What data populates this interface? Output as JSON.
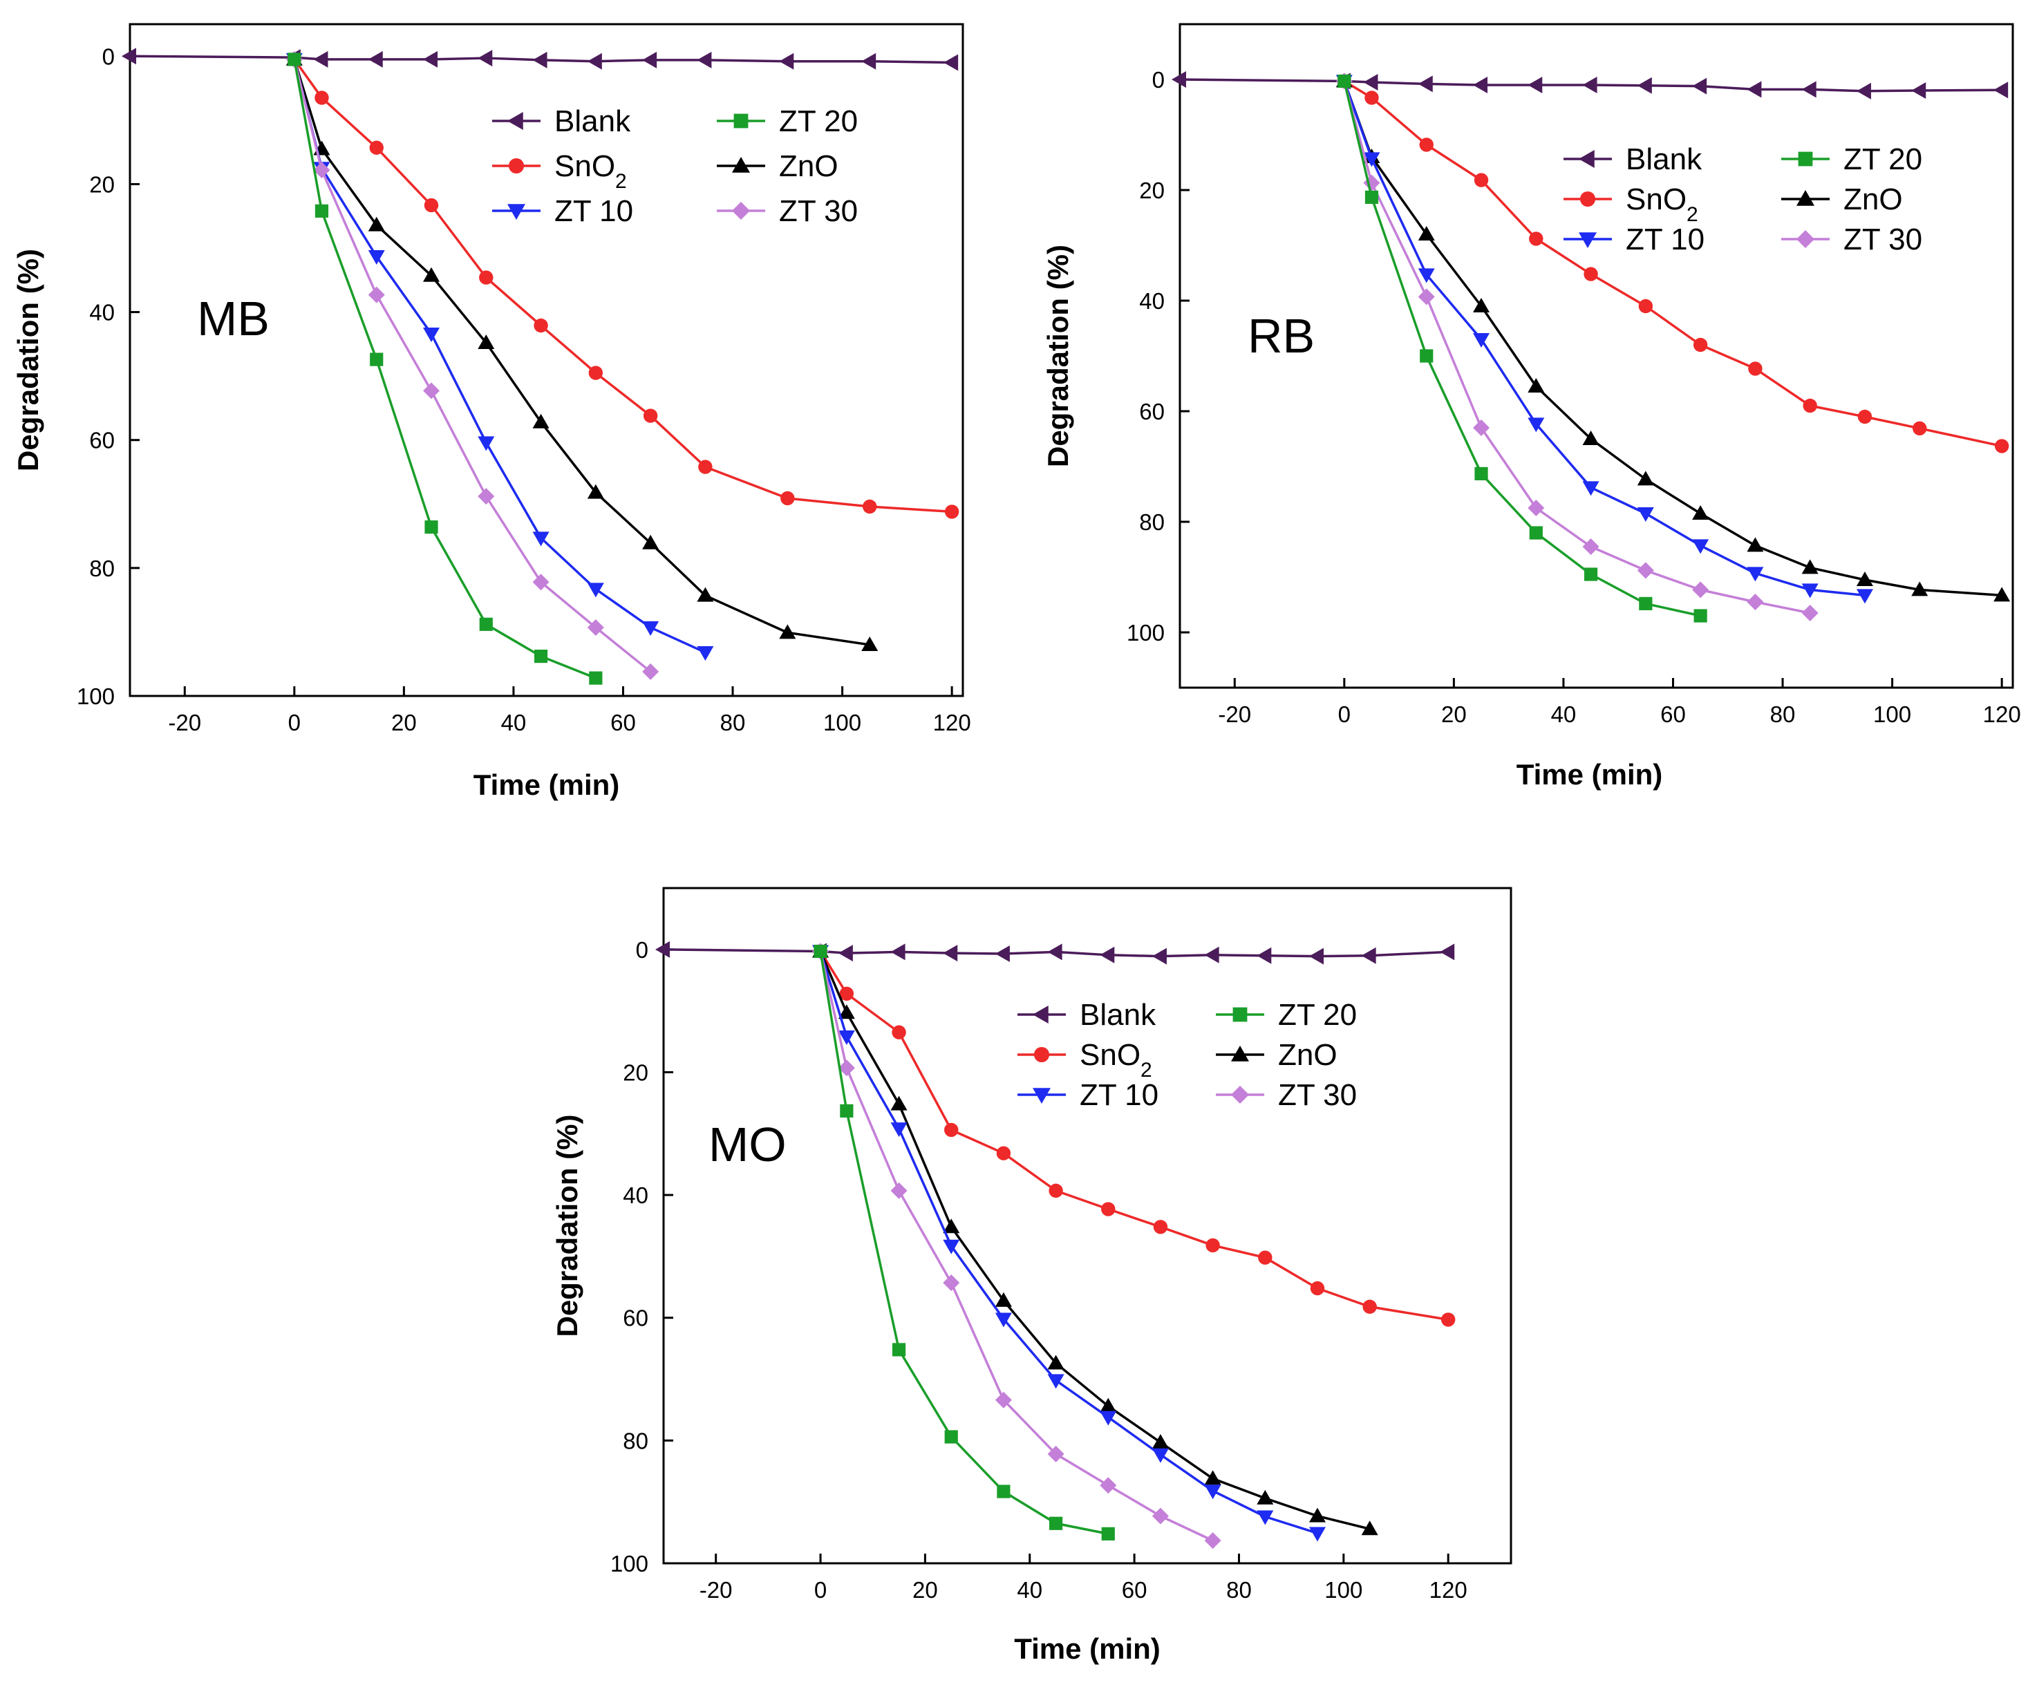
{
  "figure": {
    "description_hidden": false
  },
  "series_styles": {
    "Blank": {
      "color": "#4B1C5A",
      "marker": "triangle-left"
    },
    "SnO2": {
      "color": "#EE2929",
      "marker": "circle"
    },
    "ZT 10": {
      "color": "#1E2BF0",
      "marker": "triangle-down"
    },
    "ZT 20": {
      "color": "#1A9E2A",
      "marker": "square"
    },
    "ZnO": {
      "color": "#000000",
      "marker": "triangle-up"
    },
    "ZT 30": {
      "color": "#C47FD8",
      "marker": "diamond"
    }
  },
  "chart_data": [
    {
      "type": "line",
      "panel_label": "MB",
      "title": "",
      "xlabel": "Time (min)",
      "ylabel": "Degradation (%)",
      "xlim": [
        -30,
        122
      ],
      "ylim": [
        100,
        -5
      ],
      "y_inverted": true,
      "xticks": [
        -20,
        0,
        20,
        40,
        60,
        80,
        100,
        120
      ],
      "yticks": [
        0,
        20,
        40,
        60,
        80,
        100
      ],
      "legend": {
        "placement": "top-right",
        "columns": [
          [
            "Blank",
            "SnO2",
            "ZT 10"
          ],
          [
            "ZT 20",
            "ZnO",
            "ZT 30"
          ]
        ],
        "labels": {
          "Blank": "Blank",
          "SnO2": "SnO",
          "ZT 10": "ZT 10",
          "ZT 20": "ZT 20",
          "ZnO": "ZnO",
          "ZT 30": "ZT 30"
        },
        "subscripts": {
          "SnO2": "2"
        }
      },
      "series": [
        {
          "name": "Blank",
          "x": [
            -30,
            0,
            5,
            15,
            25,
            35,
            45,
            55,
            65,
            75,
            90,
            105,
            120
          ],
          "y": [
            0,
            0.2,
            0.5,
            0.5,
            0.5,
            0.3,
            0.6,
            0.8,
            0.6,
            0.6,
            0.8,
            0.8,
            1.0
          ]
        },
        {
          "name": "SnO2",
          "x": [
            0,
            5,
            15,
            25,
            35,
            45,
            55,
            65,
            75,
            90,
            105,
            120
          ],
          "y": [
            0.5,
            6.5,
            14.3,
            23.3,
            34.6,
            42.1,
            49.5,
            56.2,
            64.2,
            69.1,
            70.4,
            71.2
          ]
        },
        {
          "name": "ZT 10",
          "x": [
            0,
            5,
            15,
            25,
            35,
            45,
            55,
            65,
            75
          ],
          "y": [
            0.5,
            17.5,
            31.3,
            43.4,
            60.4,
            75.3,
            83.3,
            89.3,
            93.2
          ]
        },
        {
          "name": "ZT 20",
          "x": [
            0,
            5,
            15,
            25,
            35,
            45,
            55
          ],
          "y": [
            0.5,
            24.2,
            47.4,
            73.6,
            88.8,
            93.8,
            97.2
          ]
        },
        {
          "name": "ZnO",
          "x": [
            0,
            5,
            15,
            25,
            35,
            45,
            55,
            65,
            75,
            90,
            105
          ],
          "y": [
            0.5,
            14.5,
            26.4,
            34.3,
            44.8,
            57.2,
            68.2,
            76.1,
            84.3,
            90.1,
            92.0
          ]
        },
        {
          "name": "ZT 30",
          "x": [
            0,
            5,
            15,
            25,
            35,
            45,
            55,
            65
          ],
          "y": [
            0.5,
            17.8,
            37.3,
            52.3,
            68.8,
            82.2,
            89.3,
            96.2
          ]
        }
      ]
    },
    {
      "type": "line",
      "panel_label": "RB",
      "title": "",
      "xlabel": "Time (min)",
      "ylabel": "Degradation (%)",
      "xlim": [
        -30,
        122
      ],
      "ylim": [
        110,
        -10
      ],
      "y_inverted": true,
      "xticks": [
        -20,
        0,
        20,
        40,
        60,
        80,
        100,
        120
      ],
      "yticks": [
        0,
        20,
        40,
        60,
        80,
        100
      ],
      "legend": {
        "placement": "top-right",
        "columns": [
          [
            "Blank",
            "SnO2",
            "ZT 10"
          ],
          [
            "ZT 20",
            "ZnO",
            "ZT 30"
          ]
        ],
        "labels": {
          "Blank": "Blank",
          "SnO2": "SnO",
          "ZT 10": "ZT 10",
          "ZT 20": "ZT 20",
          "ZnO": "ZnO",
          "ZT 30": "ZT 30"
        },
        "subscripts": {
          "SnO2": "2"
        }
      },
      "series": [
        {
          "name": "Blank",
          "x": [
            -30,
            0,
            5,
            15,
            25,
            35,
            45,
            55,
            65,
            75,
            85,
            95,
            105,
            120
          ],
          "y": [
            0,
            0.3,
            0.5,
            0.8,
            1.0,
            1.0,
            1.0,
            1.1,
            1.2,
            1.8,
            1.8,
            2.1,
            2.0,
            1.9
          ]
        },
        {
          "name": "SnO2",
          "x": [
            0,
            5,
            15,
            25,
            35,
            45,
            55,
            65,
            75,
            85,
            95,
            105,
            120
          ],
          "y": [
            0.3,
            3.3,
            11.8,
            18.2,
            28.8,
            35.2,
            41.0,
            48.0,
            52.3,
            59.0,
            61.0,
            63.1,
            66.3
          ]
        },
        {
          "name": "ZT 10",
          "x": [
            0,
            5,
            15,
            25,
            35,
            45,
            55,
            65,
            75,
            85,
            95
          ],
          "y": [
            0.3,
            14.3,
            35.3,
            47.0,
            62.3,
            73.8,
            78.5,
            84.3,
            89.3,
            92.3,
            93.3
          ]
        },
        {
          "name": "ZT 20",
          "x": [
            0,
            5,
            15,
            25,
            35,
            45,
            55,
            65
          ],
          "y": [
            0.3,
            21.3,
            50.0,
            71.3,
            82.0,
            89.5,
            94.8,
            97.0
          ]
        },
        {
          "name": "ZnO",
          "x": [
            0,
            5,
            15,
            25,
            35,
            45,
            55,
            65,
            75,
            85,
            95,
            105,
            120
          ],
          "y": [
            0.3,
            14.0,
            28.0,
            41.0,
            55.5,
            65.0,
            72.3,
            78.5,
            84.3,
            88.3,
            90.5,
            92.3,
            93.3
          ]
        },
        {
          "name": "ZT 30",
          "x": [
            0,
            5,
            15,
            25,
            35,
            45,
            55,
            65,
            75,
            85
          ],
          "y": [
            0.3,
            18.7,
            39.3,
            63.0,
            77.5,
            84.5,
            88.8,
            92.3,
            94.5,
            96.5
          ]
        }
      ]
    },
    {
      "type": "line",
      "panel_label": "MO",
      "title": "",
      "xlabel": "Time (min)",
      "ylabel": "Degradation (%)",
      "xlim": [
        -30,
        132
      ],
      "ylim": [
        100,
        -10
      ],
      "y_inverted": true,
      "xticks": [
        -20,
        0,
        20,
        40,
        60,
        80,
        100,
        120
      ],
      "yticks": [
        0,
        20,
        40,
        60,
        80,
        100
      ],
      "legend": {
        "placement": "top-center",
        "columns": [
          [
            "Blank",
            "SnO2",
            "ZT 10"
          ],
          [
            "ZT 20",
            "ZnO",
            "ZT 30"
          ]
        ],
        "labels": {
          "Blank": "Blank",
          "SnO2": "SnO",
          "ZT 10": "ZT 10",
          "ZT 20": "ZT 20",
          "ZnO": "ZnO",
          "ZT 30": "ZT 30"
        },
        "subscripts": {
          "SnO2": "2"
        }
      },
      "series": [
        {
          "name": "Blank",
          "x": [
            -30,
            0,
            5,
            15,
            25,
            35,
            45,
            55,
            65,
            75,
            85,
            95,
            105,
            120
          ],
          "y": [
            0,
            0.3,
            0.6,
            0.4,
            0.6,
            0.7,
            0.4,
            0.9,
            1.1,
            0.9,
            1.0,
            1.1,
            1.0,
            0.4
          ]
        },
        {
          "name": "SnO2",
          "x": [
            0,
            5,
            15,
            25,
            35,
            45,
            55,
            65,
            75,
            85,
            95,
            105,
            120
          ],
          "y": [
            0.3,
            7.2,
            13.5,
            29.4,
            33.2,
            39.3,
            42.3,
            45.2,
            48.2,
            50.2,
            55.2,
            58.2,
            60.3
          ]
        },
        {
          "name": "ZT 10",
          "x": [
            0,
            5,
            15,
            25,
            35,
            45,
            55,
            65,
            75,
            85,
            95
          ],
          "y": [
            0.3,
            14.2,
            29.2,
            48.3,
            60.2,
            70.2,
            76.2,
            82.3,
            88.2,
            92.4,
            95.1
          ]
        },
        {
          "name": "ZT 20",
          "x": [
            0,
            5,
            15,
            25,
            35,
            45,
            55
          ],
          "y": [
            0.3,
            26.3,
            65.2,
            79.4,
            88.3,
            93.5,
            95.2
          ]
        },
        {
          "name": "ZnO",
          "x": [
            0,
            5,
            15,
            25,
            35,
            45,
            55,
            65,
            75,
            85,
            95,
            105
          ],
          "y": [
            0.3,
            10.3,
            25.2,
            45.2,
            57.2,
            67.4,
            74.4,
            80.3,
            86.2,
            89.4,
            92.3,
            94.4
          ]
        },
        {
          "name": "ZT 30",
          "x": [
            0,
            5,
            15,
            25,
            35,
            45,
            55,
            65,
            75
          ],
          "y": [
            0.3,
            19.3,
            39.3,
            54.3,
            73.4,
            82.2,
            87.3,
            92.3,
            96.3
          ]
        }
      ]
    }
  ]
}
